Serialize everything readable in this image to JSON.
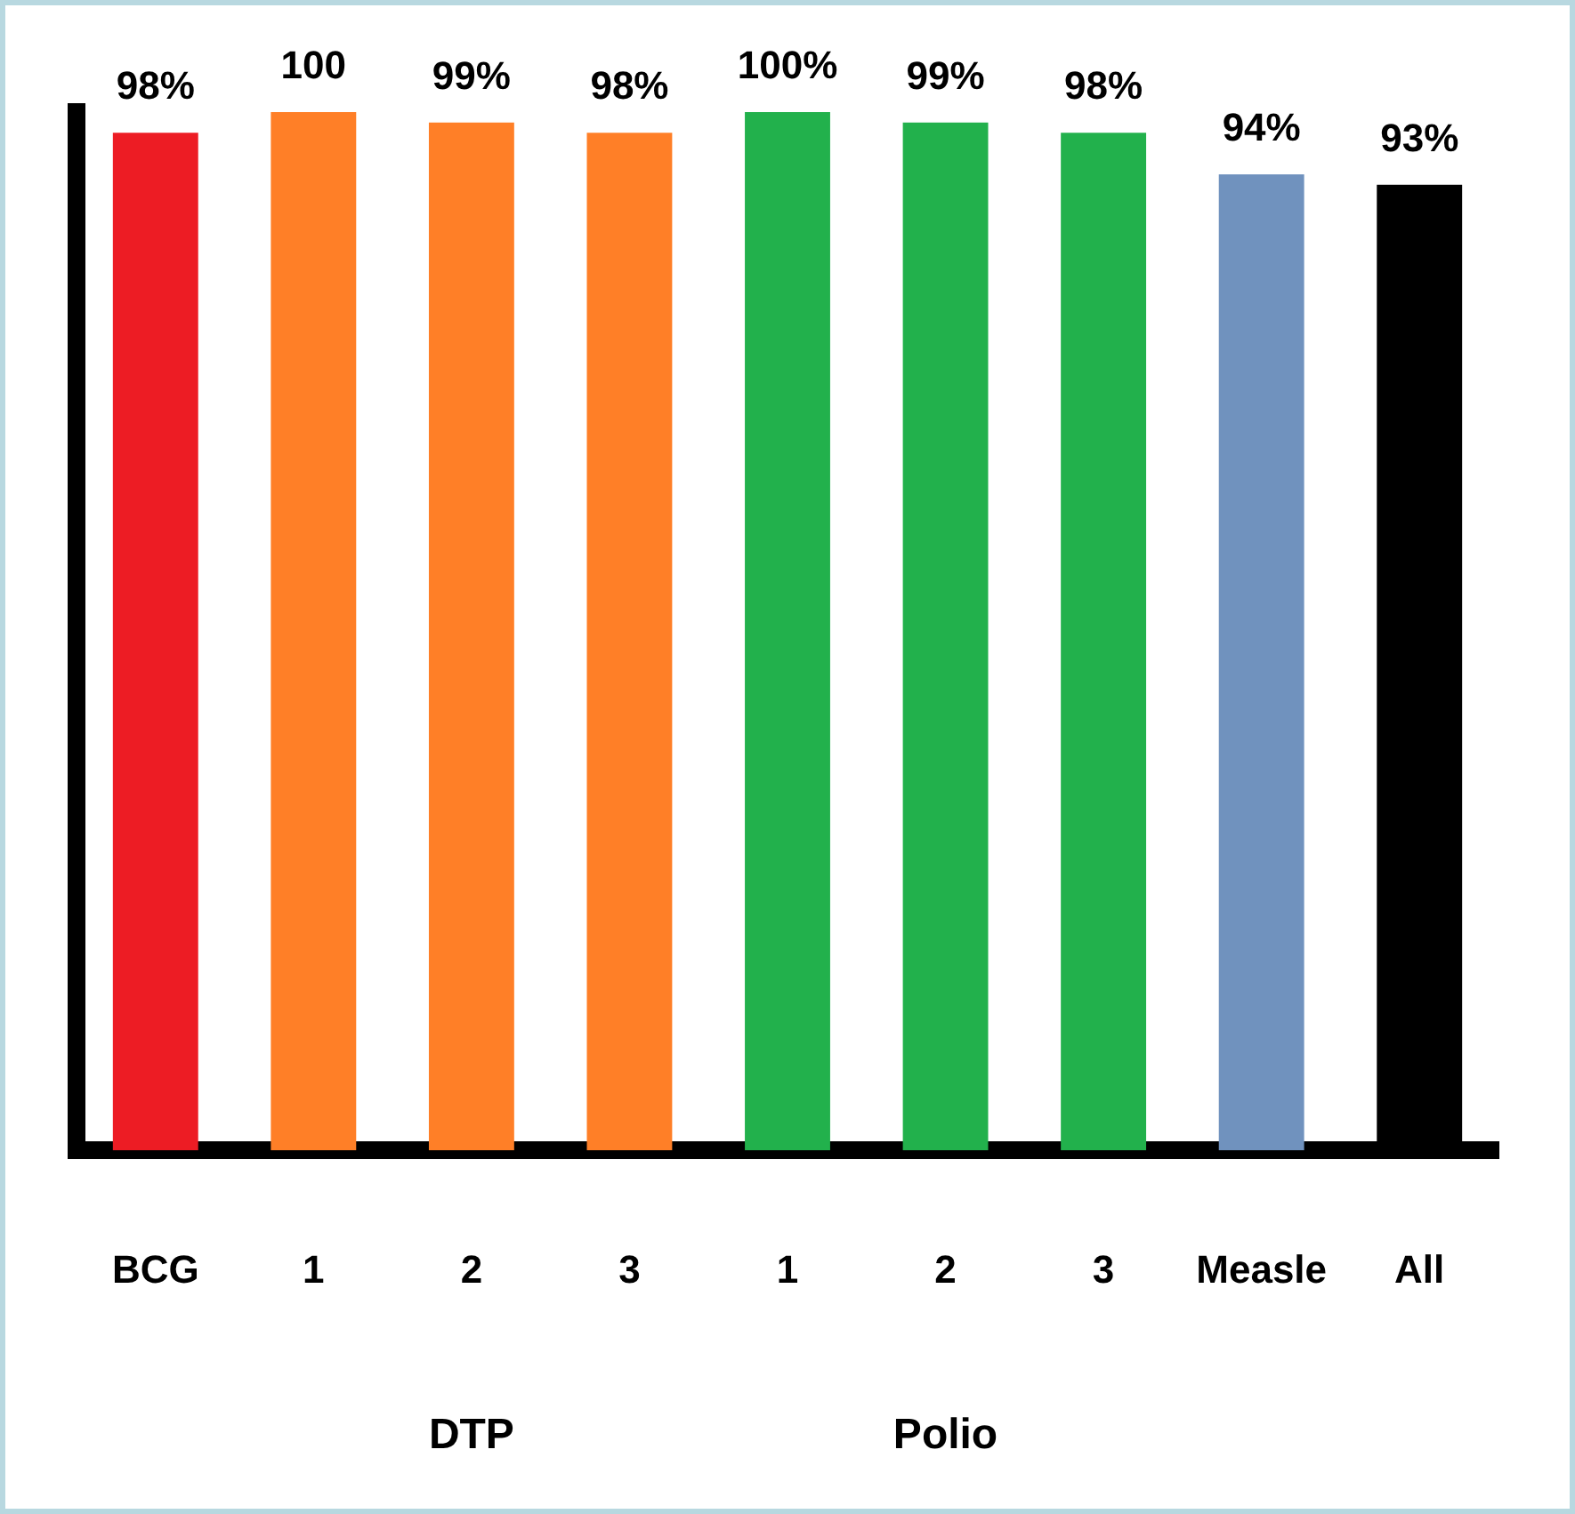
{
  "chart_data": {
    "type": "bar",
    "categories": [
      "BCG",
      "1",
      "2",
      "3",
      "1",
      "2",
      "3",
      "Measle",
      "All"
    ],
    "values": [
      98,
      100,
      99,
      98,
      100,
      99,
      98,
      94,
      93
    ],
    "value_labels": [
      "98%",
      "100",
      "99%",
      "98%",
      "100%",
      "99%",
      "98%",
      "94%",
      "93%"
    ],
    "colors": [
      "#ed1c24",
      "#ff7f27",
      "#ff7f27",
      "#ff7f27",
      "#22b14c",
      "#22b14c",
      "#22b14c",
      "#7092be",
      "#000000"
    ],
    "annotations": [
      "DTP",
      "Polio"
    ],
    "grid": false,
    "legend": false
  }
}
